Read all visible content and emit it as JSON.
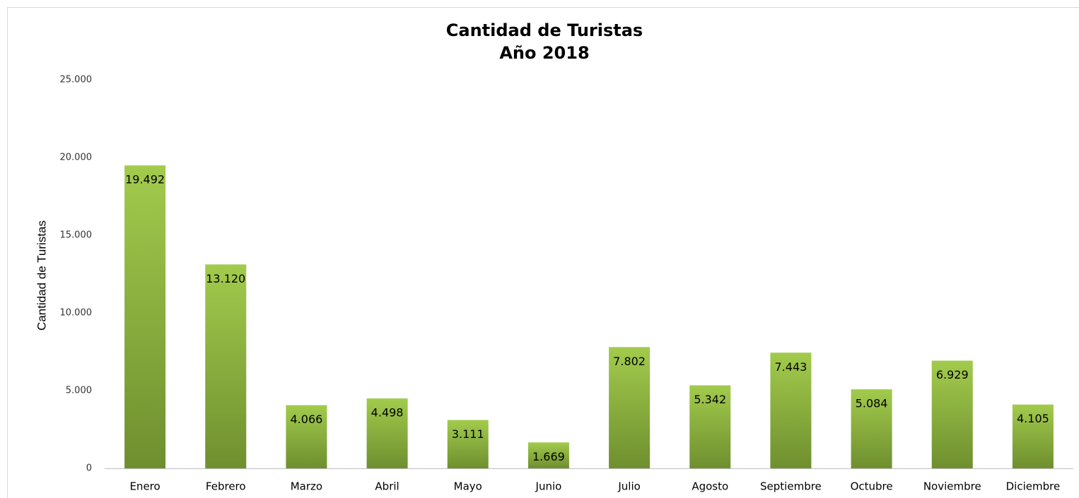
{
  "chart_data": {
    "type": "bar",
    "title": "Cantidad de Turistas",
    "subtitle": "Año 2018",
    "y_label": "Cantidad de Turistas",
    "categories": [
      "Enero",
      "Febrero",
      "Marzo",
      "Abril",
      "Mayo",
      "Junio",
      "Julio",
      "Agosto",
      "Septiembre",
      "Octubre",
      "Noviembre",
      "Diciembre"
    ],
    "values": [
      19492,
      13120,
      4066,
      4498,
      3111,
      1669,
      7802,
      5342,
      7443,
      5084,
      6929,
      4105
    ],
    "value_labels": [
      "19.492",
      "13.120",
      "4.066",
      "4.498",
      "3.111",
      "1.669",
      "7.802",
      "5.342",
      "7.443",
      "5.084",
      "6.929",
      "4.105"
    ],
    "color": "#8db43e",
    "ylim": [
      0,
      25000
    ],
    "yticks": [
      0,
      {
        "value": 5000,
        "label": "5.000"
      },
      {
        "value": 10000,
        "label": "10.000"
      },
      {
        "value": 15000,
        "label": "15.000"
      },
      {
        "value": 20000,
        "label": "20.000"
      },
      {
        "value": 25000,
        "label": "25.000"
      }
    ],
    "grid": false
  }
}
